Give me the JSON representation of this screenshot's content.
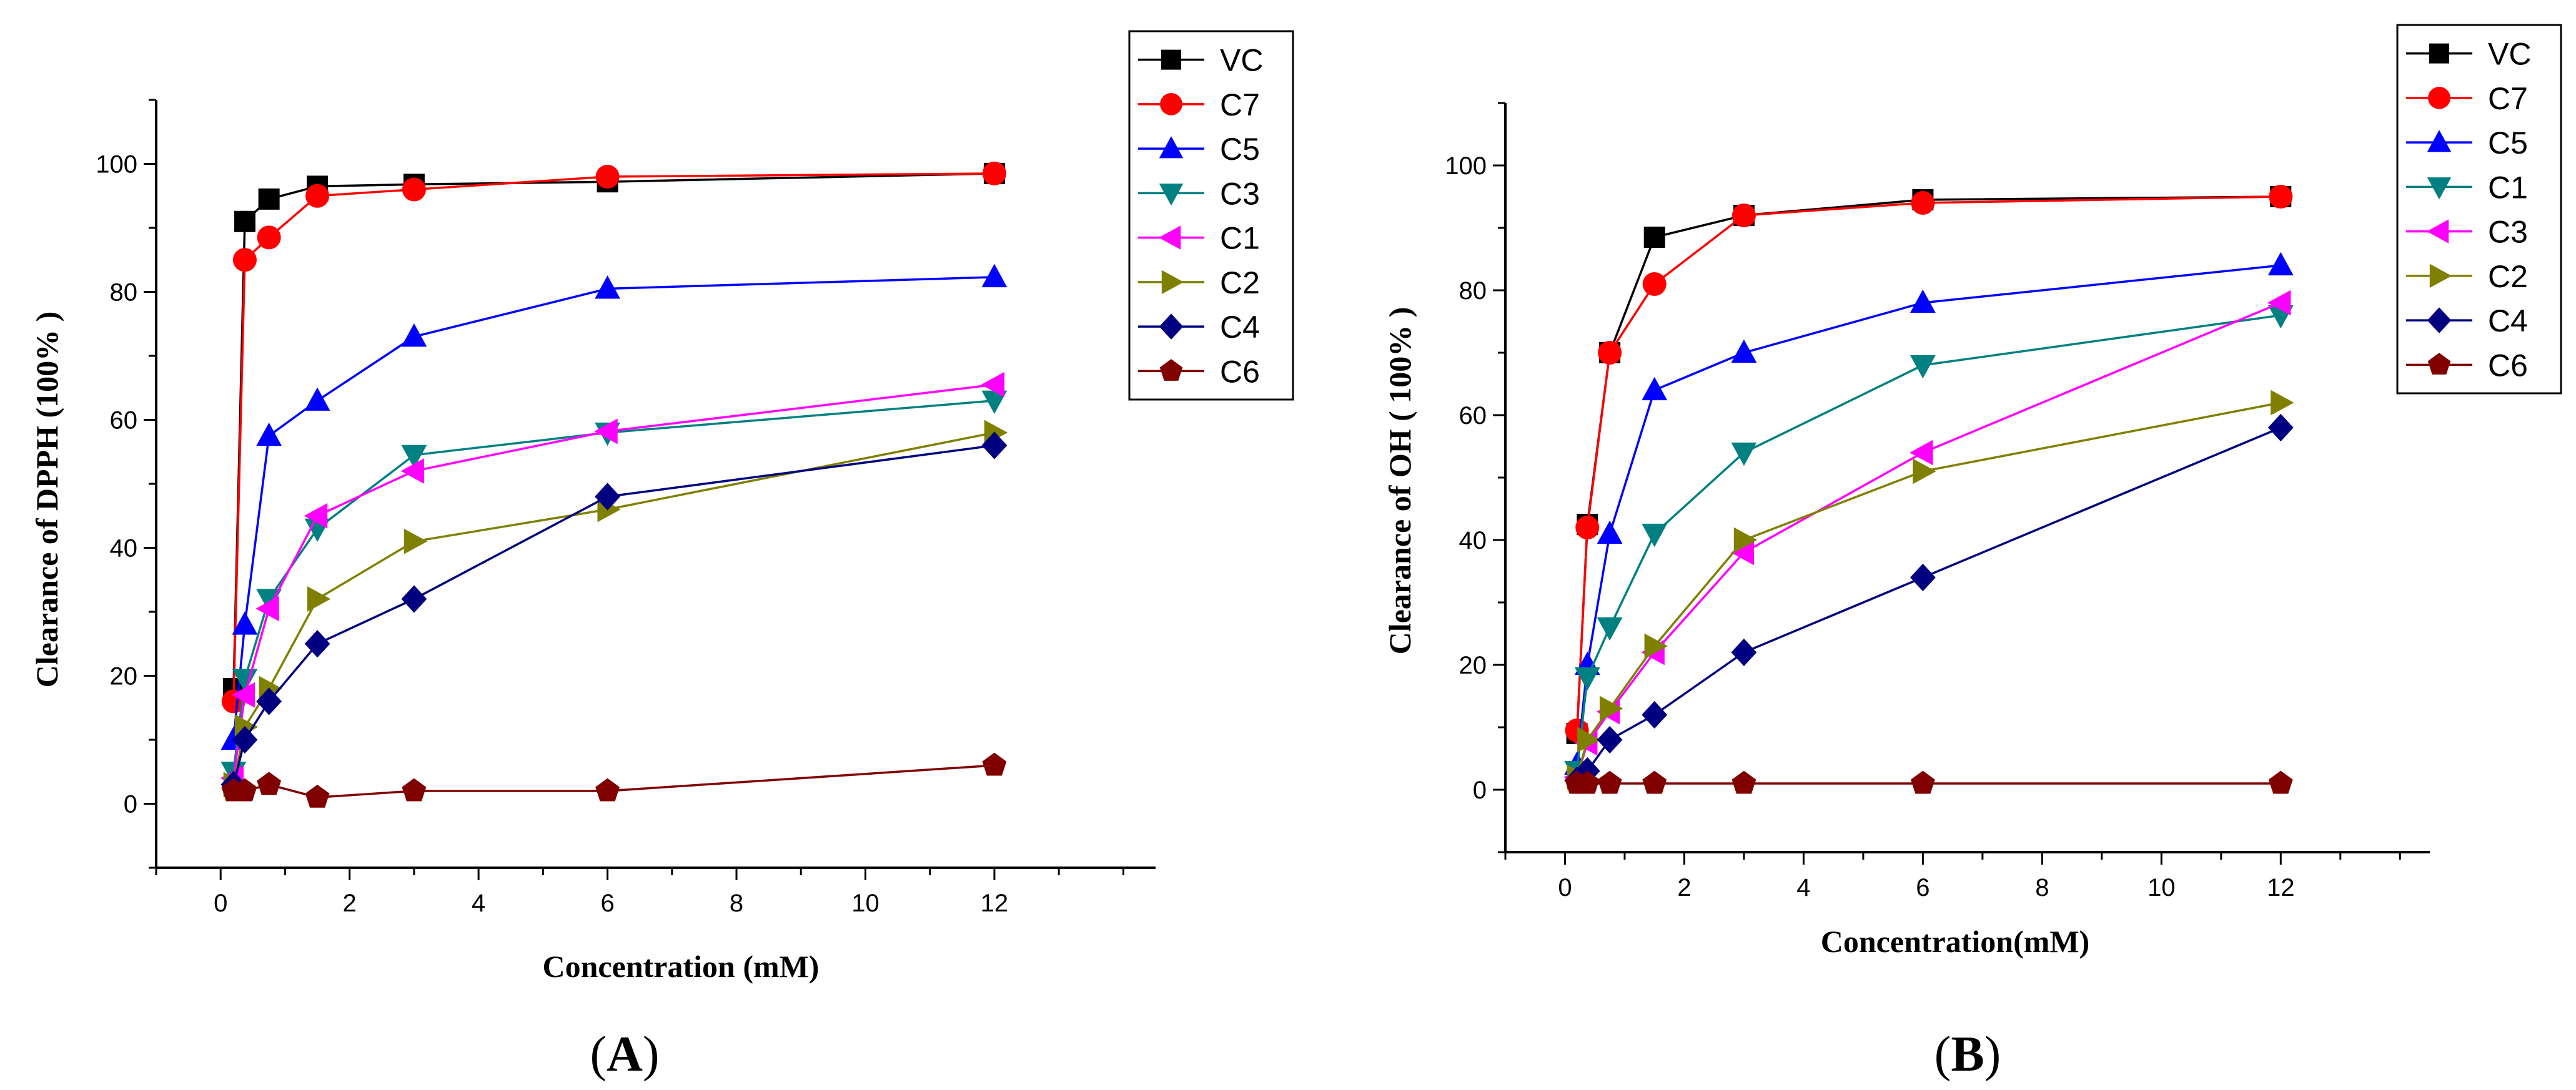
{
  "chart_data": [
    {
      "type": "line",
      "panel_label": "(A)",
      "panel_label_parts": [
        "(",
        "A",
        ")"
      ],
      "xlabel": "Concentration (mM)",
      "ylabel": "Clearance of DPPH (100% )",
      "xlim": [
        -1,
        14.5
      ],
      "ylim": [
        -10,
        110
      ],
      "xticks": [
        0,
        2,
        4,
        6,
        8,
        10,
        12
      ],
      "yticks": [
        0,
        20,
        40,
        60,
        80,
        100
      ],
      "grid": false,
      "legend_position": "top-right",
      "x_values": [
        0.2,
        0.375,
        0.75,
        1.5,
        3,
        6,
        12
      ],
      "series": [
        {
          "name": "VC",
          "color": "#000000",
          "marker": "square",
          "y": [
            18,
            91,
            94.5,
            96.5,
            96.8,
            97.2,
            98.5
          ]
        },
        {
          "name": "C7",
          "color": "#ff0000",
          "marker": "circle",
          "y": [
            16,
            85,
            88.5,
            95,
            96,
            98,
            98.5
          ]
        },
        {
          "name": "C5",
          "color": "#0000ff",
          "marker": "triangle-up",
          "y": [
            10,
            28,
            57.5,
            63,
            73,
            80.5,
            82.3
          ]
        },
        {
          "name": "C3",
          "color": "#008080",
          "marker": "triangle-down",
          "y": [
            5,
            19.5,
            32,
            43,
            54.5,
            58,
            63
          ]
        },
        {
          "name": "C1",
          "color": "#ff00ff",
          "marker": "triangle-left",
          "y": [
            4,
            17,
            30.5,
            45,
            52,
            58.2,
            65.5
          ]
        },
        {
          "name": "C2",
          "color": "#808000",
          "marker": "triangle-right",
          "y": [
            3,
            12,
            18,
            32,
            41,
            46,
            58
          ]
        },
        {
          "name": "C4",
          "color": "#000080",
          "marker": "diamond",
          "y": [
            3,
            10,
            16,
            25,
            32,
            48,
            56
          ]
        },
        {
          "name": "C6",
          "color": "#800000",
          "marker": "pentagon",
          "y": [
            2,
            2,
            3,
            1,
            2,
            2,
            6
          ]
        }
      ]
    },
    {
      "type": "line",
      "panel_label": "(B)",
      "panel_label_parts": [
        "(",
        "B",
        ")"
      ],
      "xlabel": "Concentration(mM)",
      "ylabel": "Clearance of OH ( 100% )",
      "xlim": [
        -1,
        14.5
      ],
      "ylim": [
        -10,
        110
      ],
      "xticks": [
        0,
        2,
        4,
        6,
        8,
        10,
        12
      ],
      "yticks": [
        0,
        20,
        40,
        60,
        80,
        100
      ],
      "grid": false,
      "legend_position": "top-right",
      "x_values": [
        0.2,
        0.375,
        0.75,
        1.5,
        3,
        6,
        12
      ],
      "series": [
        {
          "name": "VC",
          "color": "#000000",
          "marker": "square",
          "y": [
            9,
            42.5,
            70,
            88.5,
            92,
            94.5,
            95
          ]
        },
        {
          "name": "C7",
          "color": "#ff0000",
          "marker": "circle",
          "y": [
            9.5,
            42,
            70,
            81,
            92,
            94,
            95
          ]
        },
        {
          "name": "C5",
          "color": "#0000ff",
          "marker": "triangle-up",
          "y": [
            4,
            20,
            41,
            64,
            70,
            78,
            84
          ]
        },
        {
          "name": "C1",
          "color": "#008080",
          "marker": "triangle-down",
          "y": [
            3,
            18,
            26,
            41,
            54,
            68,
            76
          ]
        },
        {
          "name": "C3",
          "color": "#ff00ff",
          "marker": "triangle-left",
          "y": [
            2,
            7.5,
            12.5,
            22,
            38,
            54,
            78
          ]
        },
        {
          "name": "C2",
          "color": "#808000",
          "marker": "triangle-right",
          "y": [
            2,
            8,
            13,
            23,
            40,
            51,
            62
          ]
        },
        {
          "name": "C4",
          "color": "#000080",
          "marker": "diamond",
          "y": [
            1.5,
            3,
            8,
            12,
            22,
            34,
            58
          ]
        },
        {
          "name": "C6",
          "color": "#800000",
          "marker": "pentagon",
          "y": [
            1,
            1,
            1,
            1,
            1,
            1,
            1
          ]
        }
      ]
    }
  ]
}
